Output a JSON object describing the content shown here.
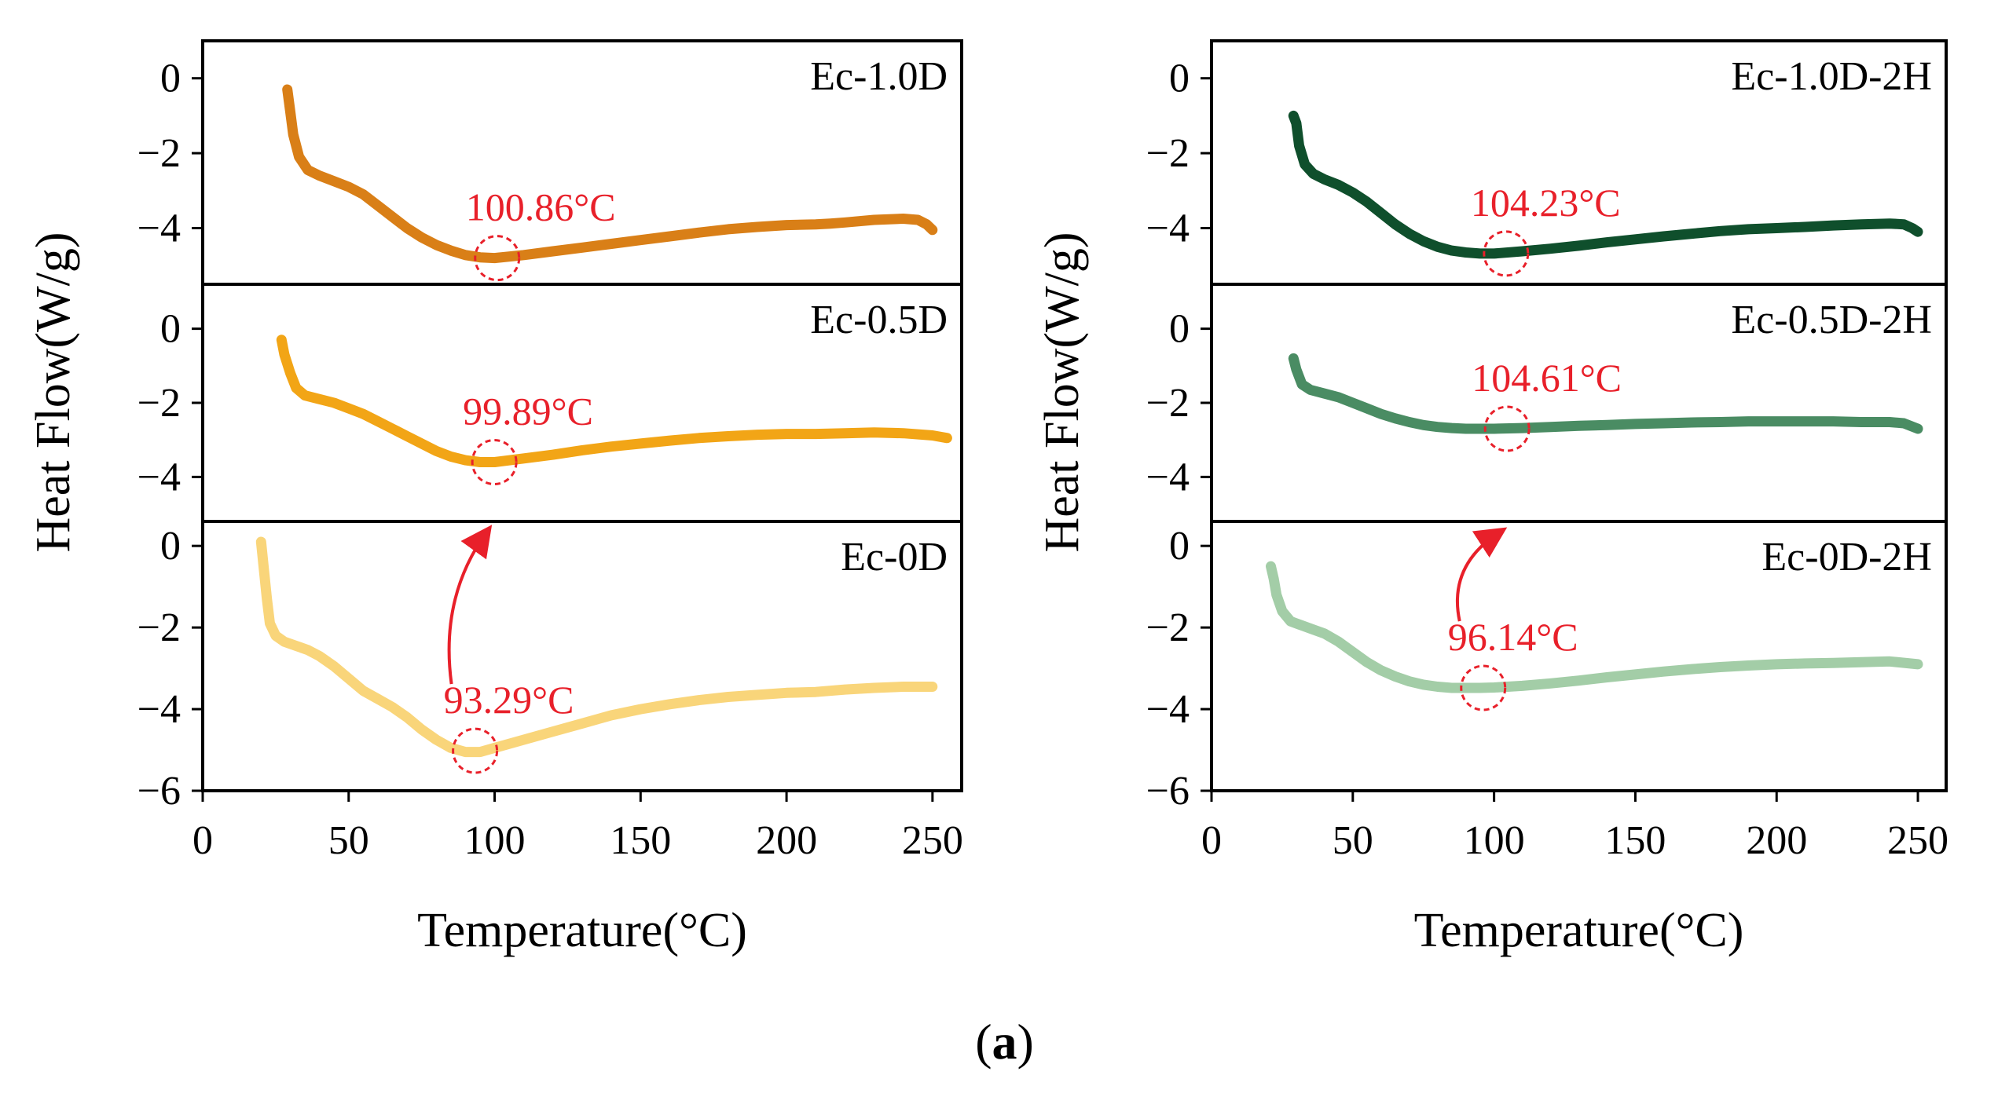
{
  "caption": {
    "open": "(",
    "letter": "a",
    "close": ")"
  },
  "chart_data": [
    {
      "type": "line",
      "panel": "left",
      "xlabel": "Temperature(°C)",
      "ylabel": "Heat Flow(W/g)",
      "xlim": [
        0,
        260
      ],
      "xticks": [
        0,
        50,
        100,
        150,
        200,
        250
      ],
      "subplots": [
        {
          "name": "Ec-1.0D",
          "color": "#D97F17",
          "ylim": [
            -5.5,
            1
          ],
          "yticks": [
            0,
            -2,
            -4
          ],
          "x": [
            29,
            30,
            31,
            33,
            36,
            40,
            45,
            50,
            55,
            60,
            65,
            70,
            75,
            80,
            85,
            90,
            95,
            100,
            110,
            120,
            130,
            140,
            150,
            160,
            170,
            180,
            190,
            200,
            210,
            215,
            220,
            230,
            240,
            245,
            248,
            250
          ],
          "y": [
            -0.3,
            -0.9,
            -1.5,
            -2.1,
            -2.45,
            -2.6,
            -2.75,
            -2.9,
            -3.1,
            -3.4,
            -3.7,
            -4.0,
            -4.25,
            -4.45,
            -4.6,
            -4.72,
            -4.78,
            -4.8,
            -4.72,
            -4.62,
            -4.52,
            -4.42,
            -4.32,
            -4.22,
            -4.12,
            -4.03,
            -3.97,
            -3.92,
            -3.9,
            -3.88,
            -3.85,
            -3.78,
            -3.75,
            -3.78,
            -3.9,
            -4.05
          ],
          "annotation": {
            "text": "100.86°C",
            "x": 100.86,
            "y": -4.8
          }
        },
        {
          "name": "Ec-0.5D",
          "color": "#F2A516",
          "ylim": [
            -5.2,
            1.2
          ],
          "yticks": [
            0,
            -2,
            -4
          ],
          "x": [
            27,
            28,
            30,
            32,
            35,
            40,
            45,
            50,
            55,
            60,
            65,
            70,
            75,
            80,
            85,
            90,
            95,
            100,
            110,
            120,
            130,
            140,
            150,
            160,
            170,
            180,
            190,
            200,
            210,
            220,
            230,
            240,
            250,
            255
          ],
          "y": [
            -0.3,
            -0.7,
            -1.2,
            -1.6,
            -1.8,
            -1.9,
            -2.0,
            -2.15,
            -2.3,
            -2.5,
            -2.7,
            -2.9,
            -3.1,
            -3.3,
            -3.45,
            -3.55,
            -3.6,
            -3.6,
            -3.5,
            -3.4,
            -3.28,
            -3.18,
            -3.1,
            -3.02,
            -2.95,
            -2.9,
            -2.86,
            -2.84,
            -2.84,
            -2.82,
            -2.8,
            -2.82,
            -2.88,
            -2.95
          ],
          "annotation": {
            "text": "99.89°C",
            "x": 99.89,
            "y": -3.6
          }
        },
        {
          "name": "Ec-0D",
          "color": "#F9D57A",
          "ylim": [
            -6,
            0.6
          ],
          "yticks": [
            0,
            -2,
            -4,
            -6
          ],
          "x": [
            20,
            21,
            22,
            23,
            25,
            28,
            32,
            36,
            40,
            45,
            50,
            55,
            60,
            65,
            70,
            75,
            80,
            85,
            90,
            95,
            100,
            110,
            120,
            130,
            140,
            150,
            160,
            170,
            180,
            190,
            200,
            210,
            220,
            230,
            240,
            250
          ],
          "y": [
            0.1,
            -0.6,
            -1.3,
            -1.9,
            -2.2,
            -2.35,
            -2.45,
            -2.55,
            -2.7,
            -2.95,
            -3.25,
            -3.55,
            -3.75,
            -3.95,
            -4.2,
            -4.5,
            -4.75,
            -4.95,
            -5.05,
            -5.05,
            -4.95,
            -4.75,
            -4.55,
            -4.35,
            -4.15,
            -4.0,
            -3.88,
            -3.78,
            -3.7,
            -3.65,
            -3.6,
            -3.58,
            -3.52,
            -3.48,
            -3.45,
            -3.45
          ],
          "annotation": {
            "text": "93.29°C",
            "x": 93.29,
            "y": -5.02
          }
        }
      ]
    },
    {
      "type": "line",
      "panel": "right",
      "xlabel": "Temperature(°C)",
      "ylabel": "Heat Flow(W/g)",
      "xlim": [
        0,
        260
      ],
      "xticks": [
        0,
        50,
        100,
        150,
        200,
        250
      ],
      "subplots": [
        {
          "name": "Ec-1.0D-2H",
          "color": "#0F4F2C",
          "ylim": [
            -5.5,
            1
          ],
          "yticks": [
            0,
            -2,
            -4
          ],
          "x": [
            29,
            30,
            31,
            33,
            36,
            40,
            45,
            50,
            55,
            60,
            65,
            70,
            75,
            80,
            85,
            90,
            95,
            100,
            110,
            120,
            130,
            140,
            150,
            160,
            170,
            180,
            190,
            200,
            210,
            220,
            230,
            240,
            245,
            248,
            250
          ],
          "y": [
            -1.0,
            -1.2,
            -1.8,
            -2.3,
            -2.55,
            -2.7,
            -2.85,
            -3.05,
            -3.3,
            -3.6,
            -3.9,
            -4.15,
            -4.35,
            -4.5,
            -4.6,
            -4.65,
            -4.68,
            -4.68,
            -4.62,
            -4.55,
            -4.47,
            -4.38,
            -4.3,
            -4.22,
            -4.15,
            -4.08,
            -4.03,
            -4.0,
            -3.97,
            -3.93,
            -3.9,
            -3.88,
            -3.9,
            -4.0,
            -4.1
          ],
          "annotation": {
            "text": "104.23°C",
            "x": 104.23,
            "y": -4.68
          }
        },
        {
          "name": "Ec-0.5D-2H",
          "color": "#4A8C63",
          "ylim": [
            -5.2,
            1.2
          ],
          "yticks": [
            0,
            -2,
            -4
          ],
          "x": [
            29,
            30,
            31,
            32,
            35,
            40,
            45,
            50,
            55,
            60,
            65,
            70,
            75,
            80,
            85,
            90,
            95,
            100,
            110,
            120,
            130,
            140,
            150,
            160,
            170,
            180,
            190,
            200,
            210,
            220,
            230,
            240,
            245,
            250
          ],
          "y": [
            -0.8,
            -1.1,
            -1.3,
            -1.5,
            -1.65,
            -1.75,
            -1.85,
            -2.0,
            -2.15,
            -2.3,
            -2.42,
            -2.52,
            -2.6,
            -2.65,
            -2.68,
            -2.7,
            -2.7,
            -2.7,
            -2.68,
            -2.65,
            -2.62,
            -2.6,
            -2.57,
            -2.55,
            -2.53,
            -2.52,
            -2.5,
            -2.5,
            -2.5,
            -2.5,
            -2.52,
            -2.52,
            -2.55,
            -2.7
          ],
          "annotation": {
            "text": "104.61°C",
            "x": 104.61,
            "y": -2.7
          }
        },
        {
          "name": "Ec-0D-2H",
          "color": "#A3CDA7",
          "ylim": [
            -6,
            0.6
          ],
          "yticks": [
            0,
            -2,
            -4,
            -6
          ],
          "x": [
            21,
            22,
            23,
            25,
            28,
            32,
            36,
            40,
            45,
            50,
            55,
            60,
            65,
            70,
            75,
            80,
            85,
            90,
            95,
            100,
            110,
            120,
            130,
            140,
            150,
            160,
            170,
            180,
            190,
            200,
            210,
            220,
            230,
            240,
            250
          ],
          "y": [
            -0.5,
            -0.8,
            -1.2,
            -1.6,
            -1.85,
            -1.95,
            -2.05,
            -2.15,
            -2.35,
            -2.6,
            -2.85,
            -3.05,
            -3.2,
            -3.32,
            -3.4,
            -3.45,
            -3.48,
            -3.48,
            -3.48,
            -3.47,
            -3.43,
            -3.37,
            -3.3,
            -3.22,
            -3.15,
            -3.08,
            -3.02,
            -2.97,
            -2.93,
            -2.9,
            -2.88,
            -2.87,
            -2.85,
            -2.83,
            -2.9
          ],
          "annotation": {
            "text": "96.14°C",
            "x": 96.14,
            "y": -3.48
          }
        }
      ]
    }
  ]
}
